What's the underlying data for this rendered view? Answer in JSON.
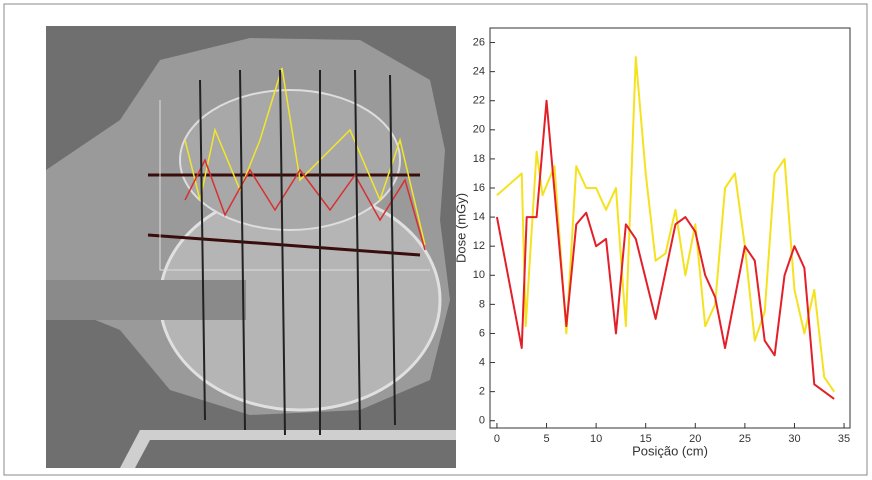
{
  "chart_data": {
    "type": "line",
    "x_label": "Posição (cm)",
    "y_label": "Dose (mGy)",
    "xlim": [
      -0.7,
      35.6
    ],
    "ylim": [
      -0.5,
      27
    ],
    "xticks": [
      0,
      5,
      10,
      15,
      20,
      25,
      30,
      35
    ],
    "yticks": [
      0,
      2,
      4,
      6,
      8,
      10,
      12,
      14,
      16,
      18,
      20,
      22,
      24,
      26
    ],
    "series": [
      {
        "color": "#f5e21f",
        "x": [
          0,
          2.5,
          2.9,
          4,
          4.6,
          5.8,
          7,
          8,
          9,
          10,
          11,
          12,
          13,
          14,
          15,
          16,
          17,
          18,
          19,
          20,
          21,
          22,
          23,
          24,
          25,
          26,
          27,
          28,
          29,
          30,
          31,
          32,
          33,
          34
        ],
        "values": [
          15.5,
          17,
          6.5,
          18.5,
          15.5,
          17.5,
          6,
          17.5,
          16,
          16,
          14.5,
          16,
          6.5,
          25,
          17,
          11,
          11.5,
          14.5,
          10,
          13.5,
          6.5,
          8,
          16,
          17,
          12,
          5.5,
          7.5,
          17,
          18,
          9,
          6,
          9,
          3,
          2
        ]
      },
      {
        "color": "#e3202a",
        "x": [
          0,
          2.5,
          3,
          4,
          5,
          7,
          8,
          9,
          10,
          11,
          12,
          13,
          14,
          16,
          18,
          19,
          20,
          21,
          22,
          23,
          25,
          26,
          27,
          28,
          29,
          30,
          31,
          32,
          34
        ],
        "values": [
          14,
          5,
          14,
          14,
          22,
          6.5,
          13.5,
          14.3,
          12,
          12.5,
          6,
          13.5,
          12.5,
          7,
          13.5,
          14,
          13,
          10,
          8.5,
          5,
          12,
          11,
          5.5,
          4.5,
          10,
          12,
          10.5,
          2.5,
          1.5
        ]
      }
    ]
  }
}
